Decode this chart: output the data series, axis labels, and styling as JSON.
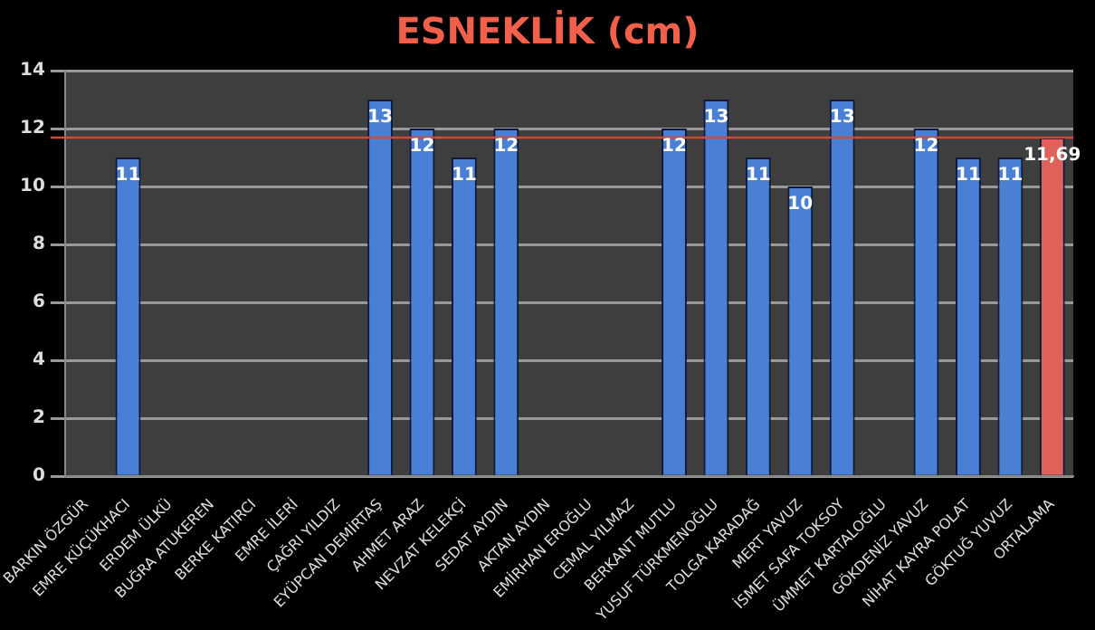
{
  "chart_data": {
    "type": "bar",
    "title": "ESNEKLİK (cm)",
    "categories": [
      "BARKIN ÖZGÜR",
      "EMRE KÜÇÜKHACI",
      "ERDEM ÜLKÜ",
      "BUĞRA ATUKEREN",
      "BERKE KATIRCI",
      "EMRE İLERİ",
      "ÇAĞRI YILDIZ",
      "EYÜPCAN DEMİRTAŞ",
      "AHMET ARAZ",
      "NEVZAT KELEKÇİ",
      "SEDAT AYDIN",
      "AKTAN AYDIN",
      "EMİRHAN EROĞLU",
      "CEMAL YILMAZ",
      "BERKANT MUTLU",
      "YUSUF TÜRKMENOĞLU",
      "TOLGA KARADAĞ",
      "MERT YAVUZ",
      "İSMET SAFA TOKSOY",
      "ÜMMET KARTALOĞLU",
      "GÖKDENİZ YAVUZ",
      "NİHAT KAYRA POLAT",
      "GÖKTUĞ YUVUZ",
      "ORTALAMA"
    ],
    "values": [
      null,
      11,
      null,
      null,
      null,
      null,
      null,
      13,
      12,
      11,
      12,
      null,
      null,
      null,
      12,
      13,
      11,
      10,
      13,
      null,
      12,
      11,
      11,
      11.69
    ],
    "value_labels": [
      null,
      "11",
      null,
      null,
      null,
      null,
      null,
      "13",
      "12",
      "11",
      "12",
      null,
      null,
      null,
      "12",
      "13",
      "11",
      "10",
      "13",
      null,
      "12",
      "11",
      "11",
      "11,69"
    ],
    "colors": [
      "#4a7fd6",
      "#4a7fd6",
      "#4a7fd6",
      "#4a7fd6",
      "#4a7fd6",
      "#4a7fd6",
      "#4a7fd6",
      "#4a7fd6",
      "#4a7fd6",
      "#4a7fd6",
      "#4a7fd6",
      "#4a7fd6",
      "#4a7fd6",
      "#4a7fd6",
      "#4a7fd6",
      "#4a7fd6",
      "#4a7fd6",
      "#4a7fd6",
      "#4a7fd6",
      "#4a7fd6",
      "#4a7fd6",
      "#4a7fd6",
      "#4a7fd6",
      "#e0605a"
    ],
    "ylim": [
      0,
      14
    ],
    "yticks": [
      0,
      2,
      4,
      6,
      8,
      10,
      12,
      14
    ],
    "grid": "y",
    "legend": false,
    "ref_lines": [
      {
        "axis": "y",
        "value": 11.69,
        "color": "#d04a3a"
      }
    ]
  }
}
